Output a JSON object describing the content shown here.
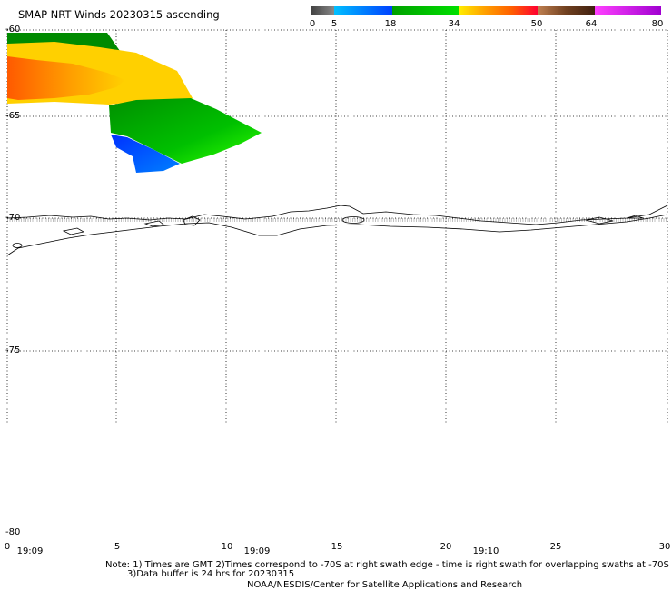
{
  "title": "SMAP NRT Winds 20230315 ascending",
  "colorbar": {
    "labels": [
      "0",
      "5",
      "18",
      "34",
      "50",
      "64",
      "80"
    ],
    "colors": [
      "#505050",
      "#00a0ff",
      "#00c000",
      "#ffd000",
      "#ff2020",
      "#906040",
      "#a000d0"
    ]
  },
  "map": {
    "lat_labels": [
      "-60",
      "-65",
      "-70",
      "-75",
      "-80"
    ],
    "lon_labels": [
      "0",
      "5",
      "10",
      "15",
      "20",
      "25",
      "30"
    ],
    "time_labels": [
      "19:09",
      "19:09",
      "19:10"
    ],
    "wind_region_colors": [
      "#008a00",
      "#ffd000",
      "#ff7a00",
      "#00e000",
      "#0030ff"
    ]
  },
  "notes": {
    "line1": "Note: 1) Times are GMT 2)Times correspond to -70S at right swath edge - time is right swath for overlapping swaths at -70S",
    "line2": "3)Data buffer is 24 hrs for 20230315",
    "credit": "NOAA/NESDIS/Center for Satellite Applications and Research"
  }
}
